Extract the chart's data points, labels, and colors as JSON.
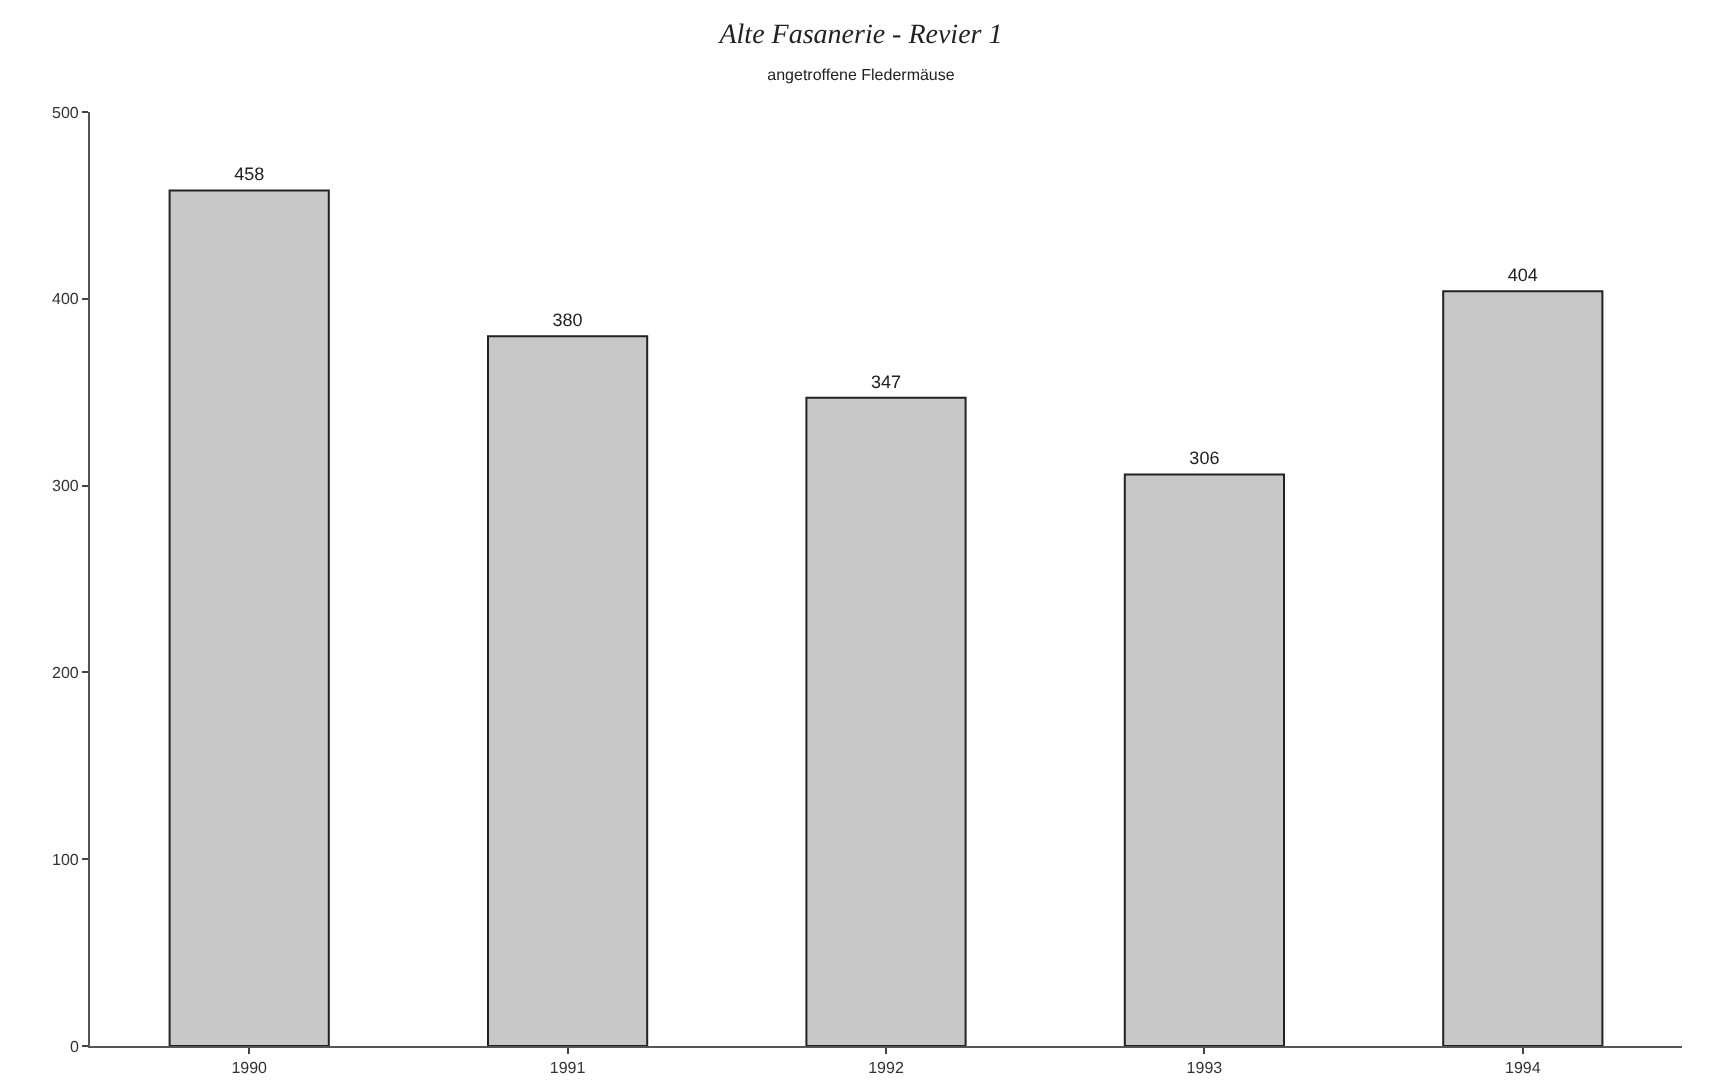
{
  "chart_data": {
    "type": "bar",
    "title": "Alte Fasanerie - Revier 1",
    "subtitle": "angetroffene Fledermäuse",
    "categories": [
      "1990",
      "1991",
      "1992",
      "1993",
      "1994"
    ],
    "values": [
      458,
      380,
      347,
      306,
      404
    ],
    "color": "#c8c8c8",
    "ylim": [
      0,
      500
    ],
    "yticks": [
      0,
      100,
      200,
      300,
      400,
      500
    ],
    "data_labels": true,
    "grid": false,
    "legend": false
  }
}
